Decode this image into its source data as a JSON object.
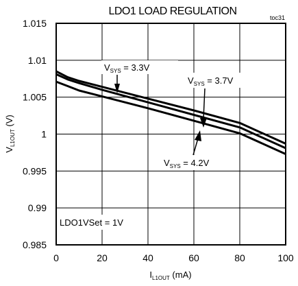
{
  "chart_data": {
    "type": "line",
    "title": "LDO1 LOAD REGULATION",
    "tag": "toc31",
    "xlabel": {
      "main": "I",
      "sub": "L1OUT",
      "unit": " (mA)"
    },
    "ylabel": {
      "main": "V",
      "sub": "L1OUT",
      "unit": " (V)"
    },
    "xlim": [
      0,
      100
    ],
    "ylim": [
      0.985,
      1.015
    ],
    "xticks": [
      "0",
      "20",
      "40",
      "60",
      "80",
      "100"
    ],
    "yticks": [
      "0.985",
      "0.99",
      "0.995",
      "1",
      "1.005",
      "1.01",
      "1.015"
    ],
    "grid": true,
    "series": [
      {
        "label_main": "V",
        "label_sub": "SYS",
        "label_rest": " = 3.3V",
        "x": [
          0,
          5,
          10,
          20,
          40,
          60,
          80,
          100
        ],
        "y": [
          1.0085,
          1.0077,
          1.0072,
          1.0064,
          1.0048,
          1.0032,
          1.0015,
          0.9987
        ]
      },
      {
        "label_main": "V",
        "label_sub": "SYS",
        "label_rest": " = 3.7V",
        "x": [
          0,
          5,
          10,
          20,
          40,
          60,
          80,
          100
        ],
        "y": [
          1.0081,
          1.0074,
          1.0069,
          1.006,
          1.0043,
          1.0026,
          1.0009,
          0.9981
        ]
      },
      {
        "label_main": "V",
        "label_sub": "SYS",
        "label_rest": " = 4.2V",
        "x": [
          0,
          5,
          10,
          20,
          40,
          60,
          80,
          100
        ],
        "y": [
          1.0071,
          1.0065,
          1.0059,
          1.0051,
          1.0035,
          1.0018,
          1.0001,
          0.9973
        ]
      }
    ],
    "annotation": "LDO1VSet = 1V"
  }
}
